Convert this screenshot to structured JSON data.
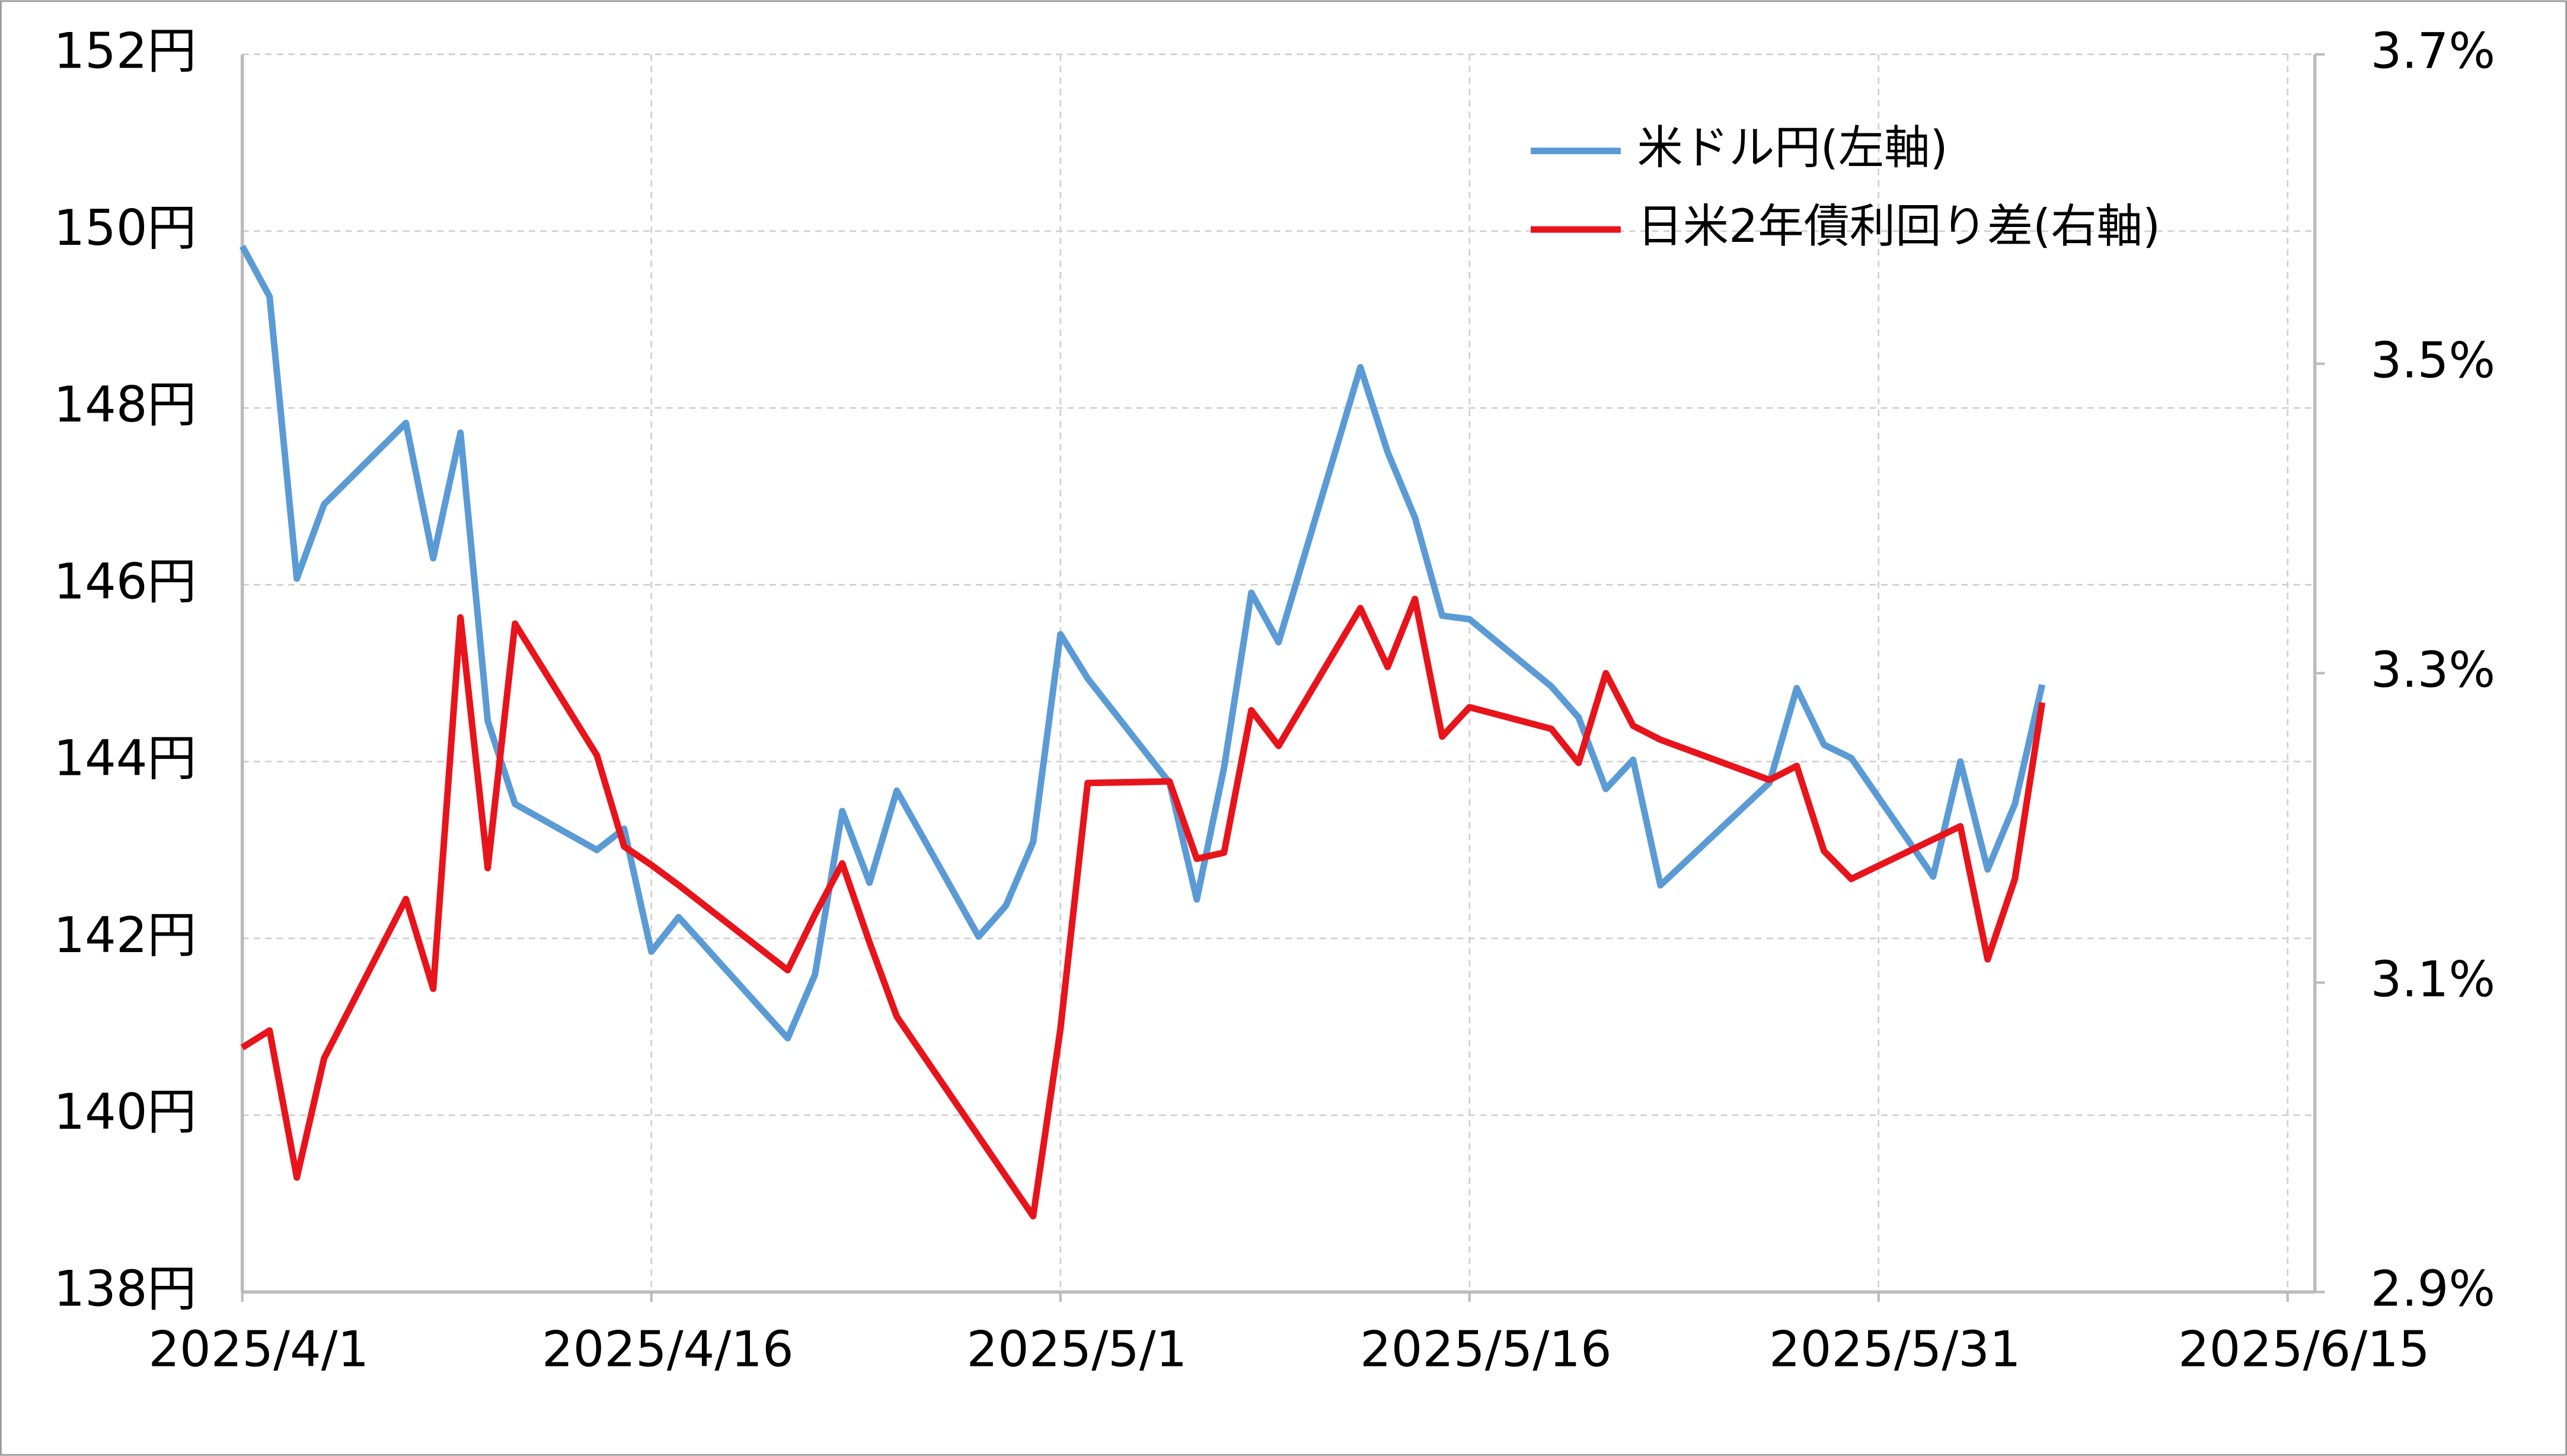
{
  "chart_data": {
    "type": "line",
    "xlim": [
      "2025/4/1",
      "2025/6/16"
    ],
    "xticks": [
      "2025/4/1",
      "2025/4/16",
      "2025/5/1",
      "2025/5/16",
      "2025/5/31",
      "2025/6/15"
    ],
    "ylim": [
      138,
      152
    ],
    "yticks": [
      {
        "value": 138,
        "label": "138円"
      },
      {
        "value": 140,
        "label": "140円"
      },
      {
        "value": 142,
        "label": "142円"
      },
      {
        "value": 144,
        "label": "144円"
      },
      {
        "value": 146,
        "label": "146円"
      },
      {
        "value": 148,
        "label": "148円"
      },
      {
        "value": 150,
        "label": "150円"
      },
      {
        "value": 152,
        "label": "152円"
      }
    ],
    "y2lim": [
      2.9,
      3.7
    ],
    "y2ticks": [
      {
        "value": 2.9,
        "label": "2.9%"
      },
      {
        "value": 3.1,
        "label": "3.1%"
      },
      {
        "value": 3.3,
        "label": "3.3%"
      },
      {
        "value": 3.5,
        "label": "3.5%"
      },
      {
        "value": 3.7,
        "label": "3.7%"
      }
    ],
    "grid": true,
    "series": [
      {
        "name": "米ドル円(左軸)",
        "color": "#5b9bd5",
        "x": [
          "2025/4/1",
          "2025/4/2",
          "2025/4/3",
          "2025/4/4",
          "2025/4/7",
          "2025/4/8",
          "2025/4/9",
          "2025/4/10",
          "2025/4/11",
          "2025/4/14",
          "2025/4/15",
          "2025/4/16",
          "2025/4/17",
          "2025/4/21",
          "2025/4/22",
          "2025/4/23",
          "2025/4/24",
          "2025/4/25",
          "2025/4/28",
          "2025/4/29",
          "2025/4/30",
          "2025/5/1",
          "2025/5/2",
          "2025/5/5",
          "2025/5/6",
          "2025/5/7",
          "2025/5/8",
          "2025/5/9",
          "2025/5/12",
          "2025/5/13",
          "2025/5/14",
          "2025/5/15",
          "2025/5/16",
          "2025/5/19",
          "2025/5/20",
          "2025/5/21",
          "2025/5/22",
          "2025/5/23",
          "2025/5/27",
          "2025/5/28",
          "2025/5/29",
          "2025/5/30",
          "2025/6/2",
          "2025/6/3",
          "2025/6/4",
          "2025/6/5",
          "2025/6/6"
        ],
        "values": [
          149.83,
          149.26,
          146.07,
          146.91,
          147.83,
          146.3,
          147.72,
          144.46,
          143.52,
          143.0,
          143.24,
          141.85,
          142.24,
          140.87,
          141.59,
          143.44,
          142.63,
          143.67,
          142.02,
          142.37,
          143.09,
          145.44,
          144.94,
          143.76,
          142.44,
          143.93,
          145.91,
          145.35,
          148.46,
          147.5,
          146.76,
          145.65,
          145.61,
          144.85,
          144.5,
          143.69,
          144.02,
          142.6,
          143.76,
          144.83,
          144.19,
          144.04,
          142.7,
          144.0,
          142.78,
          143.52,
          144.87
        ]
      },
      {
        "name": "日米2年債利回り差(右軸)",
        "color": "#e8141b",
        "axis": "y2",
        "x": [
          "2025/4/1",
          "2025/4/2",
          "2025/4/3",
          "2025/4/4",
          "2025/4/7",
          "2025/4/8",
          "2025/4/9",
          "2025/4/10",
          "2025/4/11",
          "2025/4/14",
          "2025/4/15",
          "2025/4/16",
          "2025/4/17",
          "2025/4/21",
          "2025/4/22",
          "2025/4/23",
          "2025/4/24",
          "2025/4/25",
          "2025/4/30",
          "2025/5/1",
          "2025/5/2",
          "2025/5/5",
          "2025/5/6",
          "2025/5/7",
          "2025/5/8",
          "2025/5/9",
          "2025/5/12",
          "2025/5/13",
          "2025/5/14",
          "2025/5/15",
          "2025/5/16",
          "2025/5/19",
          "2025/5/20",
          "2025/5/21",
          "2025/5/22",
          "2025/5/23",
          "2025/5/27",
          "2025/5/28",
          "2025/5/29",
          "2025/5/30",
          "2025/6/3",
          "2025/6/4",
          "2025/6/5",
          "2025/6/6"
        ],
        "values": [
          3.058,
          3.069,
          2.974,
          3.051,
          3.154,
          3.096,
          3.336,
          3.174,
          3.332,
          3.247,
          3.188,
          3.176,
          3.163,
          3.108,
          3.144,
          3.177,
          3.126,
          3.078,
          2.949,
          3.07,
          3.229,
          3.23,
          3.18,
          3.184,
          3.276,
          3.253,
          3.342,
          3.304,
          3.348,
          3.259,
          3.278,
          3.264,
          3.242,
          3.3,
          3.266,
          3.257,
          3.231,
          3.24,
          3.185,
          3.167,
          3.201,
          3.115,
          3.167,
          3.281
        ]
      }
    ]
  }
}
